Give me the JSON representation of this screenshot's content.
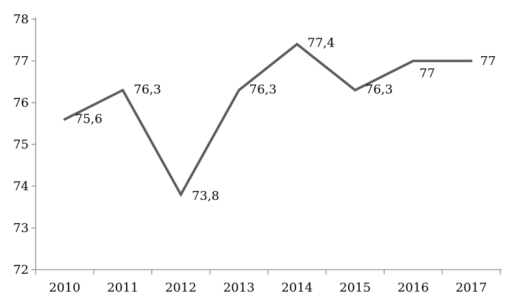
{
  "chart_data": {
    "type": "line",
    "title": "",
    "xlabel": "",
    "ylabel": "",
    "categories": [
      "2010",
      "2011",
      "2012",
      "2013",
      "2014",
      "2015",
      "2016",
      "2017"
    ],
    "series": [
      {
        "name": "series-1",
        "values": [
          75.6,
          76.3,
          73.8,
          76.3,
          77.4,
          76.3,
          77,
          77
        ],
        "point_labels": [
          "75,6",
          "76,3",
          "73,8",
          "76,3",
          "77,4",
          "76,3",
          "77",
          "77"
        ]
      }
    ],
    "ylim": [
      72,
      78
    ],
    "yticks": [
      72,
      73,
      74,
      75,
      76,
      77,
      78
    ],
    "ytick_labels": [
      "72",
      "73",
      "74",
      "75",
      "76",
      "77",
      "78"
    ],
    "grid": false,
    "legend": false,
    "legend_position": "none",
    "colors": {
      "line": "#595959",
      "axis": "#8c8c8c",
      "text": "#000000",
      "background": "#ffffff"
    }
  }
}
